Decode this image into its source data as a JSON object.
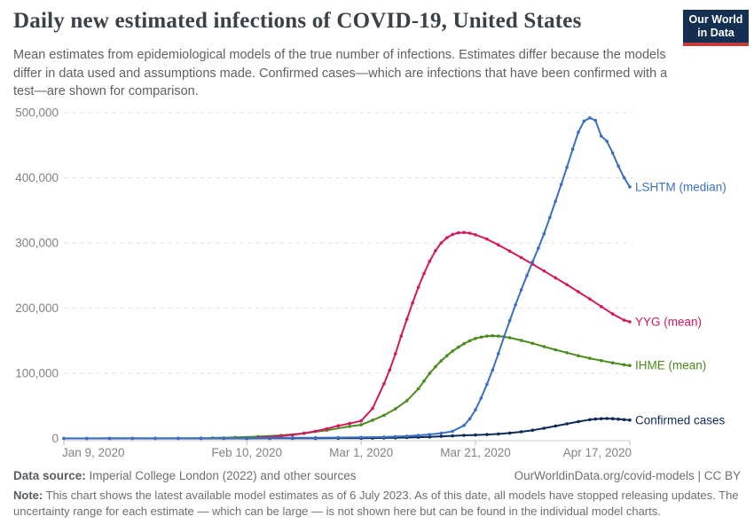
{
  "header": {
    "title": "Daily new estimated infections of COVID-19, United States",
    "subtitle": "Mean estimates from epidemiological models of the true number of infections. Estimates differ because the models differ in data used and assumptions made. Confirmed cases—which are infections that have been confirmed with a test—are shown for comparison.",
    "logo": {
      "line1": "Our World",
      "line2": "in Data",
      "bg_color": "#142f52",
      "accent_color": "#c23c3c"
    }
  },
  "chart_data": {
    "type": "line",
    "title": "Daily new estimated infections of COVID-19, United States",
    "xlabel": "",
    "ylabel": "",
    "grid": "horizontal dashed",
    "legend_position": "line-end labels",
    "x_axis": {
      "domain_days": [
        0,
        99
      ],
      "start_date": "Jan 9, 2020",
      "end_date": "Apr 17, 2020",
      "tick_days": [
        0,
        32,
        52,
        72,
        99
      ],
      "tick_labels": [
        "Jan 9, 2020",
        "Feb 10, 2020",
        "Mar 1, 2020",
        "Mar 21, 2020",
        "Apr 17, 2020"
      ]
    },
    "y_axis": {
      "min": 0,
      "max": 500000,
      "tick_interval": 100000,
      "tick_labels": [
        "0",
        "100,000",
        "200,000",
        "300,000",
        "400,000",
        "500,000"
      ]
    },
    "series": [
      {
        "name": "Confirmed cases",
        "color": "#0d2b56",
        "points": [
          [
            0,
            0
          ],
          [
            4,
            0
          ],
          [
            8,
            0
          ],
          [
            12,
            0
          ],
          [
            16,
            0
          ],
          [
            20,
            0
          ],
          [
            24,
            30
          ],
          [
            28,
            50
          ],
          [
            32,
            60
          ],
          [
            36,
            80
          ],
          [
            40,
            110
          ],
          [
            44,
            160
          ],
          [
            48,
            250
          ],
          [
            52,
            420
          ],
          [
            54,
            550
          ],
          [
            56,
            750
          ],
          [
            58,
            1000
          ],
          [
            60,
            1400
          ],
          [
            62,
            1900
          ],
          [
            64,
            2500
          ],
          [
            66,
            3200
          ],
          [
            68,
            4000
          ],
          [
            70,
            4700
          ],
          [
            72,
            5300
          ],
          [
            74,
            6000
          ],
          [
            76,
            6900
          ],
          [
            78,
            8300
          ],
          [
            80,
            10200
          ],
          [
            82,
            12700
          ],
          [
            84,
            15700
          ],
          [
            86,
            19000
          ],
          [
            88,
            22500
          ],
          [
            90,
            25800
          ],
          [
            92,
            28800
          ],
          [
            93,
            29800
          ],
          [
            94,
            30400
          ],
          [
            95,
            30600
          ],
          [
            96,
            30300
          ],
          [
            97,
            29700
          ],
          [
            98,
            28900
          ],
          [
            99,
            28200
          ]
        ]
      },
      {
        "name": "IHME (mean)",
        "color": "#4a8b1c",
        "points": [
          [
            26,
            800
          ],
          [
            30,
            1600
          ],
          [
            34,
            2900
          ],
          [
            38,
            4800
          ],
          [
            42,
            7800
          ],
          [
            46,
            12500
          ],
          [
            50,
            18500
          ],
          [
            52,
            21000
          ],
          [
            54,
            28000
          ],
          [
            56,
            35500
          ],
          [
            58,
            45500
          ],
          [
            60,
            58000
          ],
          [
            62,
            76000
          ],
          [
            63,
            88000
          ],
          [
            64,
            100000
          ],
          [
            65,
            110000
          ],
          [
            66,
            119000
          ],
          [
            67,
            127000
          ],
          [
            68,
            134000
          ],
          [
            69,
            140000
          ],
          [
            70,
            145500
          ],
          [
            71,
            150000
          ],
          [
            72,
            153500
          ],
          [
            73,
            155500
          ],
          [
            74,
            157000
          ],
          [
            75,
            157500
          ],
          [
            76,
            157000
          ],
          [
            77,
            156000
          ],
          [
            78,
            154500
          ],
          [
            80,
            150500
          ],
          [
            82,
            146000
          ],
          [
            84,
            141000
          ],
          [
            86,
            136000
          ],
          [
            88,
            131500
          ],
          [
            90,
            127000
          ],
          [
            92,
            123000
          ],
          [
            94,
            119500
          ],
          [
            96,
            116000
          ],
          [
            98,
            113000
          ],
          [
            99,
            112000
          ]
        ]
      },
      {
        "name": "YYG (mean)",
        "color": "#d1195f",
        "points": [
          [
            34,
            1500
          ],
          [
            36,
            2400
          ],
          [
            38,
            3700
          ],
          [
            40,
            5500
          ],
          [
            42,
            8000
          ],
          [
            44,
            11000
          ],
          [
            46,
            15000
          ],
          [
            48,
            19500
          ],
          [
            50,
            23000
          ],
          [
            52,
            27000
          ],
          [
            54,
            46000
          ],
          [
            56,
            84000
          ],
          [
            57,
            105000
          ],
          [
            58,
            130000
          ],
          [
            59,
            157000
          ],
          [
            60,
            183000
          ],
          [
            61,
            208000
          ],
          [
            62,
            232000
          ],
          [
            63,
            253000
          ],
          [
            64,
            272000
          ],
          [
            65,
            288000
          ],
          [
            66,
            300000
          ],
          [
            67,
            308000
          ],
          [
            68,
            313000
          ],
          [
            69,
            315500
          ],
          [
            70,
            316000
          ],
          [
            71,
            315000
          ],
          [
            72,
            312500
          ],
          [
            74,
            306000
          ],
          [
            76,
            297000
          ],
          [
            78,
            287500
          ],
          [
            80,
            277500
          ],
          [
            82,
            267500
          ],
          [
            84,
            257000
          ],
          [
            86,
            246500
          ],
          [
            88,
            236000
          ],
          [
            90,
            225000
          ],
          [
            92,
            214000
          ],
          [
            94,
            202500
          ],
          [
            96,
            191000
          ],
          [
            98,
            181500
          ],
          [
            99,
            179000
          ]
        ]
      },
      {
        "name": "LSHTM (median)",
        "color": "#3b6fc4",
        "points": [
          [
            0,
            150
          ],
          [
            4,
            200
          ],
          [
            8,
            250
          ],
          [
            12,
            300
          ],
          [
            16,
            360
          ],
          [
            20,
            430
          ],
          [
            24,
            510
          ],
          [
            28,
            600
          ],
          [
            32,
            700
          ],
          [
            36,
            820
          ],
          [
            40,
            950
          ],
          [
            44,
            1100
          ],
          [
            48,
            1300
          ],
          [
            52,
            1600
          ],
          [
            56,
            2200
          ],
          [
            58,
            2800
          ],
          [
            60,
            3600
          ],
          [
            62,
            4700
          ],
          [
            64,
            6100
          ],
          [
            66,
            8000
          ],
          [
            68,
            11000
          ],
          [
            70,
            20000
          ],
          [
            71,
            30000
          ],
          [
            72,
            44000
          ],
          [
            73,
            62000
          ],
          [
            74,
            83000
          ],
          [
            75,
            105000
          ],
          [
            76,
            130000
          ],
          [
            77,
            156000
          ],
          [
            78,
            181000
          ],
          [
            79,
            205000
          ],
          [
            80,
            228000
          ],
          [
            81,
            250000
          ],
          [
            82,
            271000
          ],
          [
            83,
            292000
          ],
          [
            84,
            314000
          ],
          [
            85,
            339000
          ],
          [
            86,
            364000
          ],
          [
            87,
            390000
          ],
          [
            88,
            416000
          ],
          [
            89,
            444000
          ],
          [
            90,
            470000
          ],
          [
            91,
            487000
          ],
          [
            92,
            492000
          ],
          [
            93,
            488000
          ],
          [
            94,
            464000
          ],
          [
            95,
            456000
          ],
          [
            96,
            438000
          ],
          [
            97,
            418000
          ],
          [
            98,
            400000
          ],
          [
            99,
            386000
          ]
        ]
      }
    ]
  },
  "footer": {
    "source_label": "Data source:",
    "source_text": "Imperial College London (2022) and other sources",
    "license": "OurWorldinData.org/covid-models | CC BY",
    "note_label": "Note:",
    "note_text": "This chart shows the latest available model estimates as of 6 July 2023. As of this date, all models have stopped releasing updates. The uncertainty range for each estimate — which can be large — is not shown here but can be found in the individual model charts."
  }
}
